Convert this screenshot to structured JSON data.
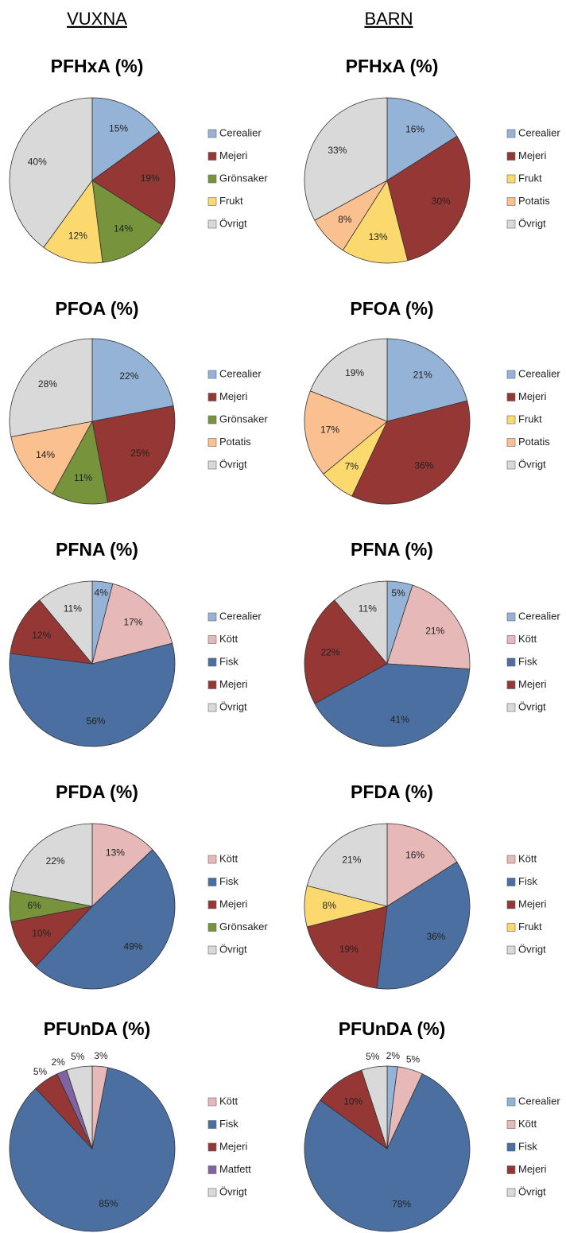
{
  "headers": [
    "VUXNA",
    "BARN"
  ],
  "chart_data": [
    {
      "type": "pie",
      "title": "PFHxA (%)",
      "categories": [
        "Cerealier",
        "Mejeri",
        "Grönsaker",
        "Frukt",
        "Övrigt"
      ],
      "values": [
        15,
        19,
        14,
        12,
        40
      ],
      "value_labels": [
        "15%",
        "19%",
        "14%",
        "12%",
        "40%"
      ],
      "colors": [
        "#95b3d7",
        "#953735",
        "#77933c",
        "#fcd96e",
        "#d9d9d9"
      ]
    },
    {
      "type": "pie",
      "title": "PFHxA (%)",
      "categories": [
        "Cerealier",
        "Mejeri",
        "Frukt",
        "Potatis",
        "Övrigt"
      ],
      "values": [
        16,
        30,
        13,
        8,
        33
      ],
      "value_labels": [
        "16%",
        "30%",
        "13%",
        "8%",
        "33%"
      ],
      "colors": [
        "#95b3d7",
        "#953735",
        "#fcd96e",
        "#fac090",
        "#d9d9d9"
      ]
    },
    {
      "type": "pie",
      "title": "PFOA (%)",
      "categories": [
        "Cerealier",
        "Mejeri",
        "Grönsaker",
        "Potatis",
        "Övrigt"
      ],
      "values": [
        22,
        25,
        11,
        14,
        28
      ],
      "value_labels": [
        "22%",
        "25%",
        "11%",
        "14%",
        "28%"
      ],
      "colors": [
        "#95b3d7",
        "#953735",
        "#77933c",
        "#fac090",
        "#d9d9d9"
      ]
    },
    {
      "type": "pie",
      "title": "PFOA (%)",
      "categories": [
        "Cerealier",
        "Mejeri",
        "Frukt",
        "Potatis",
        "Övrigt"
      ],
      "values": [
        21,
        36,
        7,
        17,
        19
      ],
      "value_labels": [
        "21%",
        "36%",
        "7%",
        "17%",
        "19%"
      ],
      "colors": [
        "#95b3d7",
        "#953735",
        "#fcd96e",
        "#fac090",
        "#d9d9d9"
      ]
    },
    {
      "type": "pie",
      "title": "PFNA (%)",
      "categories": [
        "Cerealier",
        "Kött",
        "Fisk",
        "Mejeri",
        "Övrigt"
      ],
      "values": [
        4,
        17,
        56,
        12,
        11
      ],
      "value_labels": [
        "4%",
        "17%",
        "56%",
        "12%",
        "11%"
      ],
      "colors": [
        "#95b3d7",
        "#e6b9b8",
        "#4a6fa0",
        "#953735",
        "#d9d9d9"
      ]
    },
    {
      "type": "pie",
      "title": "PFNA (%)",
      "categories": [
        "Cerealier",
        "Kött",
        "Fisk",
        "Mejeri",
        "Övrigt"
      ],
      "values": [
        5,
        21,
        41,
        22,
        11
      ],
      "value_labels": [
        "5%",
        "21%",
        "41%",
        "22%",
        "11%"
      ],
      "colors": [
        "#95b3d7",
        "#e6b9b8",
        "#4a6fa0",
        "#953735",
        "#d9d9d9"
      ]
    },
    {
      "type": "pie",
      "title": "PFDA (%)",
      "categories": [
        "Kött",
        "Fisk",
        "Mejeri",
        "Grönsaker",
        "Övrigt"
      ],
      "values": [
        13,
        49,
        10,
        6,
        22
      ],
      "value_labels": [
        "13%",
        "49%",
        "10%",
        "6%",
        "22%"
      ],
      "colors": [
        "#e6b9b8",
        "#4a6fa0",
        "#953735",
        "#77933c",
        "#d9d9d9"
      ]
    },
    {
      "type": "pie",
      "title": "PFDA (%)",
      "categories": [
        "Kött",
        "Fisk",
        "Mejeri",
        "Frukt",
        "Övrigt"
      ],
      "values": [
        16,
        36,
        19,
        8,
        21
      ],
      "value_labels": [
        "16%",
        "36%",
        "19%",
        "8%",
        "21%"
      ],
      "colors": [
        "#e6b9b8",
        "#4a6fa0",
        "#953735",
        "#fcd96e",
        "#d9d9d9"
      ]
    },
    {
      "type": "pie",
      "title": "PFUnDA (%)",
      "categories": [
        "Kött",
        "Fisk",
        "Mejeri",
        "Matfett",
        "Övrigt"
      ],
      "values": [
        3,
        85,
        5,
        2,
        5
      ],
      "value_labels": [
        "3%",
        "85%",
        "5%",
        "2%",
        "5%"
      ],
      "colors": [
        "#e6b9b8",
        "#4a6fa0",
        "#953735",
        "#8064a2",
        "#d9d9d9"
      ]
    },
    {
      "type": "pie",
      "title": "PFUnDA (%)",
      "categories": [
        "Cerealier",
        "Kött",
        "Fisk",
        "Mejeri",
        "Övrigt"
      ],
      "values": [
        2,
        5,
        78,
        10,
        5
      ],
      "value_labels": [
        "2%",
        "5%",
        "78%",
        "10%",
        "5%"
      ],
      "colors": [
        "#95b3d7",
        "#e6b9b8",
        "#4a6fa0",
        "#953735",
        "#d9d9d9"
      ]
    }
  ]
}
